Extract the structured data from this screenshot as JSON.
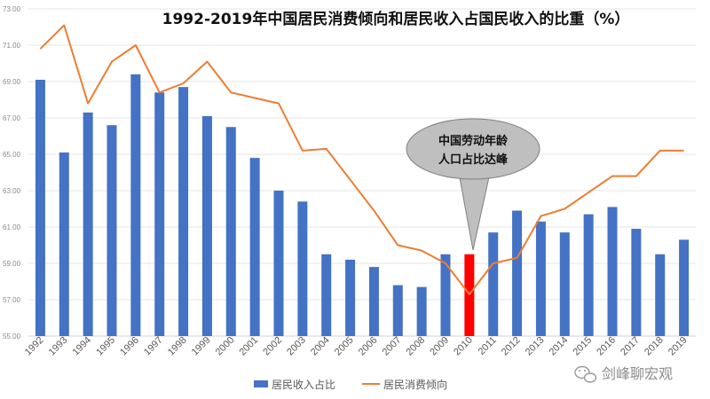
{
  "chart_data": {
    "type": "bar+line",
    "title": "1992-2019年中国居民消费倾向和居民收入占国民收入的比重（%）",
    "categories": [
      "1992",
      "1993",
      "1994",
      "1995",
      "1996",
      "1997",
      "1998",
      "1999",
      "2000",
      "2001",
      "2002",
      "2003",
      "2004",
      "2005",
      "2006",
      "2007",
      "2008",
      "2009",
      "2010",
      "2011",
      "2012",
      "2013",
      "2014",
      "2015",
      "2016",
      "2017",
      "2018",
      "2019"
    ],
    "ylim": [
      55,
      73
    ],
    "yticks": [
      "55.00",
      "57.00",
      "59.00",
      "61.00",
      "63.00",
      "65.00",
      "67.00",
      "69.00",
      "71.00",
      "73.00"
    ],
    "grid": true,
    "legend_position": "bottom",
    "series": [
      {
        "name": "居民收入占比",
        "type": "bar",
        "color": "#4472C4",
        "highlight": {
          "category": "2010",
          "color": "#FF0000"
        },
        "values": [
          69.1,
          65.1,
          67.3,
          66.6,
          69.4,
          68.4,
          68.7,
          67.1,
          66.5,
          64.8,
          63.0,
          62.4,
          59.5,
          59.2,
          58.8,
          57.8,
          57.7,
          59.5,
          59.5,
          60.7,
          61.9,
          61.3,
          60.7,
          61.7,
          62.1,
          60.9,
          59.5,
          60.3
        ]
      },
      {
        "name": "居民消费倾向",
        "type": "line",
        "color": "#ED7D31",
        "values": [
          70.8,
          72.1,
          67.8,
          70.1,
          71.0,
          68.4,
          68.9,
          70.1,
          68.4,
          68.1,
          67.8,
          65.2,
          65.3,
          63.6,
          61.9,
          60.0,
          59.7,
          59.0,
          57.3,
          59.0,
          59.3,
          61.6,
          62.0,
          62.9,
          63.8,
          63.8,
          65.2,
          65.2
        ]
      }
    ],
    "annotations": [
      {
        "text_line1": "中国劳动年龄",
        "text_line2": "人口占比达峰",
        "points_to": "2010"
      }
    ]
  },
  "watermark": {
    "text": "剑峰聊宏观",
    "icon": "wechat-icon"
  }
}
